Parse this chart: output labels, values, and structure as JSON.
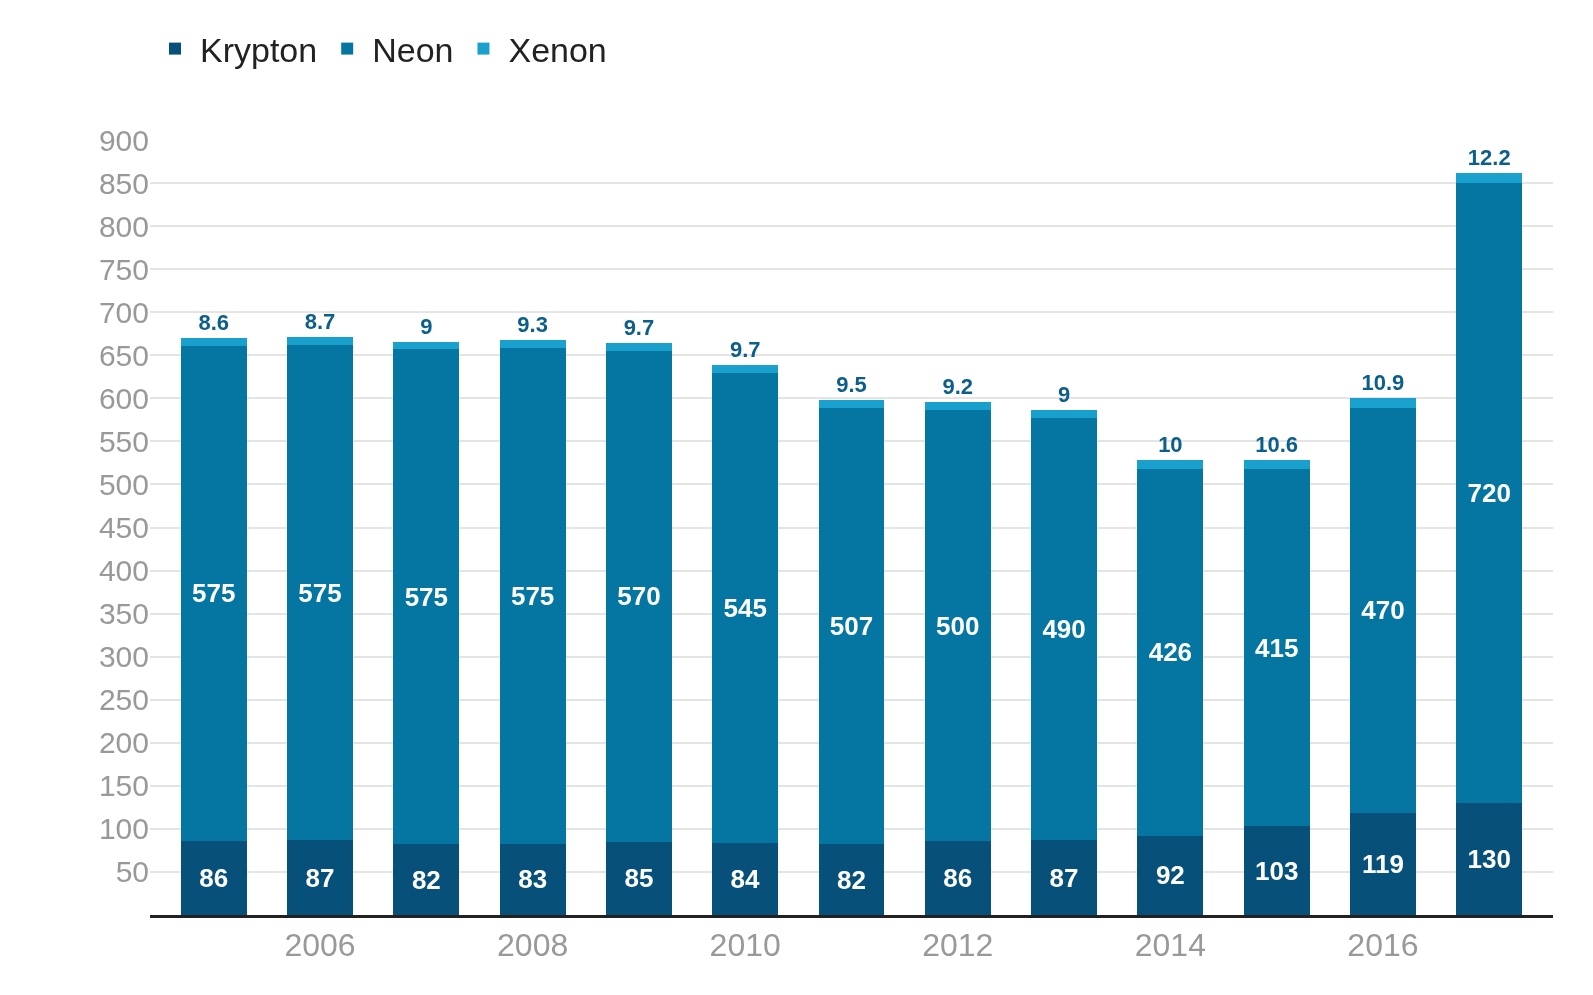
{
  "chart_data": {
    "type": "bar",
    "stacked": true,
    "x": [
      2005,
      2006,
      2007,
      2008,
      2009,
      2010,
      2011,
      2012,
      2013,
      2014,
      2015,
      2016,
      2017
    ],
    "series": [
      {
        "name": "Krypton",
        "color": "#06507a",
        "values": [
          86,
          87,
          82,
          83,
          85,
          84,
          82,
          86,
          87,
          92,
          103,
          119,
          130
        ]
      },
      {
        "name": "Neon",
        "color": "#0576a2",
        "values": [
          575,
          575,
          575,
          575,
          570,
          545,
          507,
          500,
          490,
          426,
          415,
          470,
          720
        ]
      },
      {
        "name": "Xenon",
        "color": "#1aa0cc",
        "values": [
          8.6,
          8.7,
          9,
          9.3,
          9.7,
          9.7,
          9.5,
          9.2,
          9.0,
          10,
          10.6,
          10.9,
          12.2
        ]
      }
    ],
    "xlim": [
      2004.4,
      2017.6
    ],
    "xticks": [
      2006,
      2008,
      2010,
      2012,
      2014,
      2016
    ],
    "ylim": [
      0,
      900
    ],
    "yticks": [
      {
        "value": 0,
        "label": null
      },
      50,
      100,
      150,
      200,
      250,
      300,
      350,
      400,
      450,
      500,
      550,
      600,
      650,
      700,
      750,
      800,
      850,
      900
    ],
    "grid": "y",
    "legend": "top left",
    "data_labels": true
  }
}
